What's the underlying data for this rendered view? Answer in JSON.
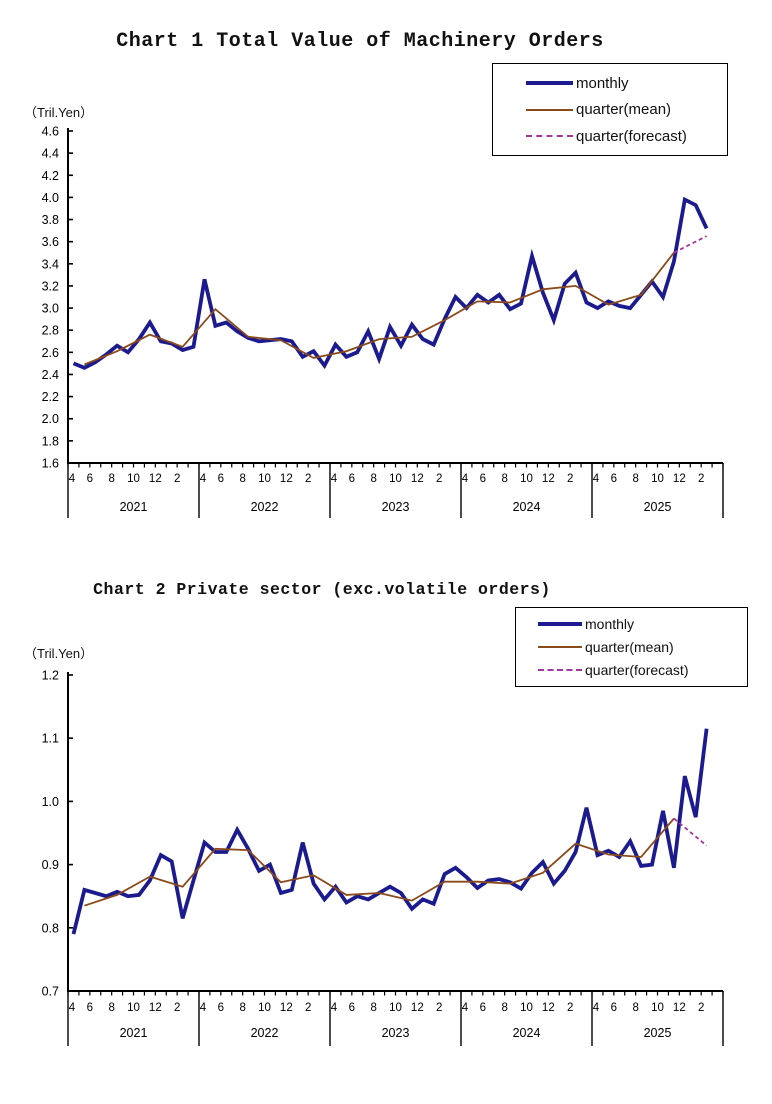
{
  "chart_data": [
    {
      "type": "line",
      "title": "Chart 1 Total Value of Machinery Orders",
      "unit_label": "（Tril.Yen）",
      "ylim": [
        1.6,
        4.6
      ],
      "ytick_step": 0.2,
      "ytick_labels": [
        "4.6",
        "4.4",
        "4.2",
        "4.0",
        "3.8",
        "3.6",
        "3.4",
        "3.2",
        "3.0",
        "2.8",
        "2.6",
        "2.4",
        "2.2",
        "2.0",
        "1.8",
        "1.6"
      ],
      "x_month_labels": [
        "4",
        "6",
        "8",
        "10",
        "12",
        "2"
      ],
      "years": [
        "2021",
        "2022",
        "2023",
        "2024",
        "2025"
      ],
      "x_start": "April 2021, monthly, Japanese fiscal-year blocks",
      "grid": "off",
      "legend_position": "top-right",
      "legend": [
        {
          "label": "monthly",
          "color": "#1b1b8f",
          "style": "solid-thick"
        },
        {
          "label": "quarter(mean)",
          "color": "#8b4a19",
          "style": "solid"
        },
        {
          "label": "quarter(forecast)",
          "color": "#a333a3",
          "style": "dashed"
        }
      ],
      "series": [
        {
          "name": "monthly",
          "values": [
            2.5,
            2.46,
            2.51,
            2.58,
            2.66,
            2.6,
            2.72,
            2.87,
            2.7,
            2.68,
            2.62,
            2.65,
            3.26,
            2.84,
            2.87,
            2.79,
            2.73,
            2.7,
            2.71,
            2.72,
            2.7,
            2.56,
            2.61,
            2.48,
            2.67,
            2.56,
            2.6,
            2.79,
            2.54,
            2.83,
            2.66,
            2.85,
            2.72,
            2.67,
            2.9,
            3.1,
            3.0,
            3.12,
            3.05,
            3.12,
            2.99,
            3.04,
            3.47,
            3.14,
            2.89,
            3.22,
            3.32,
            3.05,
            3.0,
            3.06,
            3.02,
            3.0,
            3.12,
            3.24,
            3.1,
            3.42,
            3.98,
            3.93,
            3.72
          ]
        },
        {
          "name": "quarter(mean)",
          "x_month_index": [
            1,
            4,
            7,
            10,
            13,
            16,
            19,
            22,
            25,
            28,
            31,
            34,
            37,
            40,
            43,
            46,
            49,
            52,
            55
          ],
          "values": [
            2.49,
            2.61,
            2.76,
            2.65,
            2.99,
            2.74,
            2.71,
            2.55,
            2.61,
            2.72,
            2.74,
            2.89,
            3.06,
            3.05,
            3.17,
            3.2,
            3.03,
            3.12,
            3.5
          ]
        },
        {
          "name": "quarter(forecast)",
          "x_month_index": [
            55,
            58
          ],
          "values": [
            3.5,
            3.65
          ]
        }
      ]
    },
    {
      "type": "line",
      "title": "Chart 2 Private sector (exc.volatile orders)",
      "unit_label": "（Tril.Yen）",
      "ylim": [
        0.7,
        1.2
      ],
      "ytick_step": 0.1,
      "ytick_labels": [
        "1.2",
        "1.1",
        "1.0",
        "0.9",
        "0.8",
        "0.7"
      ],
      "x_month_labels": [
        "4",
        "6",
        "8",
        "10",
        "12",
        "2"
      ],
      "years": [
        "2021",
        "2022",
        "2023",
        "2024",
        "2025"
      ],
      "x_start": "April 2021, monthly, Japanese fiscal-year blocks",
      "grid": "off",
      "legend_position": "top-right",
      "legend": [
        {
          "label": "monthly",
          "color": "#1b1b8f",
          "style": "solid-thick"
        },
        {
          "label": "quarter(mean)",
          "color": "#8b4a19",
          "style": "solid"
        },
        {
          "label": "quarter(forecast)",
          "color": "#a333a3",
          "style": "dashed"
        }
      ],
      "series": [
        {
          "name": "monthly",
          "values": [
            0.79,
            0.86,
            0.855,
            0.85,
            0.857,
            0.85,
            0.852,
            0.875,
            0.915,
            0.905,
            0.815,
            0.875,
            0.935,
            0.92,
            0.92,
            0.955,
            0.925,
            0.89,
            0.9,
            0.855,
            0.86,
            0.935,
            0.87,
            0.845,
            0.865,
            0.84,
            0.85,
            0.845,
            0.855,
            0.865,
            0.855,
            0.83,
            0.845,
            0.838,
            0.885,
            0.895,
            0.88,
            0.863,
            0.875,
            0.877,
            0.872,
            0.862,
            0.887,
            0.904,
            0.87,
            0.89,
            0.92,
            0.99,
            0.915,
            0.922,
            0.912,
            0.937,
            0.898,
            0.9,
            0.985,
            0.895,
            1.04,
            0.975,
            1.115
          ]
        },
        {
          "name": "quarter(mean)",
          "x_month_index": [
            1,
            4,
            7,
            10,
            13,
            16,
            19,
            22,
            25,
            28,
            31,
            34,
            37,
            40,
            43,
            46,
            49,
            52,
            55
          ],
          "values": [
            0.835,
            0.852,
            0.881,
            0.865,
            0.925,
            0.923,
            0.872,
            0.883,
            0.852,
            0.855,
            0.843,
            0.873,
            0.873,
            0.87,
            0.887,
            0.933,
            0.916,
            0.912,
            0.973
          ]
        },
        {
          "name": "quarter(forecast)",
          "x_month_index": [
            55,
            58
          ],
          "values": [
            0.973,
            0.93
          ]
        }
      ]
    }
  ]
}
